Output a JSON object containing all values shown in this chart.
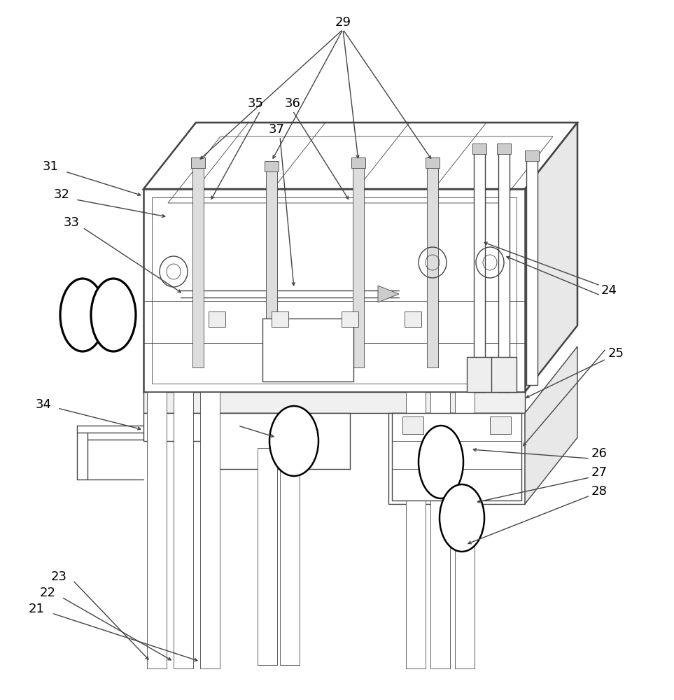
{
  "bg": "#ffffff",
  "lc": "#444444",
  "lw1": 1.8,
  "lw2": 1.0,
  "lw3": 0.6,
  "fs": 13,
  "arrow_ms": 7
}
